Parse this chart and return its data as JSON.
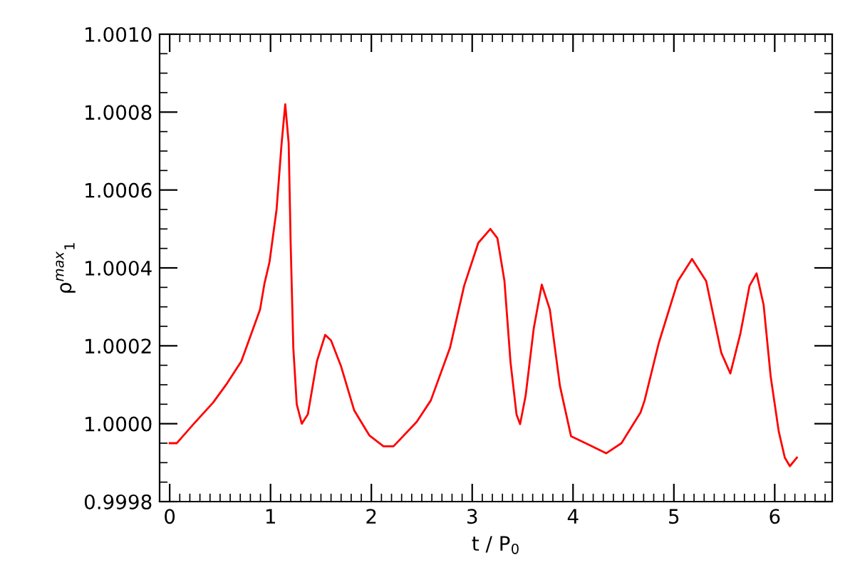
{
  "chart_data": {
    "type": "line",
    "xlabel": "t / P$_{0}$",
    "ylabel": "ρ$^{max}$$_{1}$",
    "xlim": [
      -0.1,
      6.57
    ],
    "ylim": [
      0.9998,
      1.001
    ],
    "xticks": [
      0,
      1,
      2,
      3,
      4,
      5,
      6
    ],
    "yticks": [
      {
        "value": 0.9998,
        "label": "0.9998"
      },
      {
        "value": 1.0,
        "label": "1.0000"
      },
      {
        "value": 1.0002,
        "label": "1.0002"
      },
      {
        "value": 1.0004,
        "label": "1.0004"
      },
      {
        "value": 1.0006,
        "label": "1.0006"
      },
      {
        "value": 1.0008,
        "label": "1.0008"
      },
      {
        "value": 1.001,
        "label": "1.0010"
      }
    ],
    "grid": false,
    "marker": "none",
    "line_style": "solid",
    "series": [
      {
        "color": "#ff0000",
        "x": [
          0,
          0.07,
          0.24,
          0.43,
          0.57,
          0.71,
          0.85,
          0.896,
          0.94,
          0.99,
          1.06,
          1.11,
          1.146,
          1.18,
          1.2,
          1.226,
          1.26,
          1.31,
          1.37,
          1.46,
          1.542,
          1.6,
          1.7,
          1.83,
          1.98,
          2.12,
          2.22,
          2.45,
          2.59,
          2.78,
          2.92,
          3.06,
          3.18,
          3.25,
          3.32,
          3.38,
          3.44,
          3.475,
          3.53,
          3.61,
          3.69,
          3.77,
          3.87,
          3.98,
          4.15,
          4.33,
          4.48,
          4.67,
          4.71,
          4.85,
          5.04,
          5.18,
          5.32,
          5.47,
          5.56,
          5.66,
          5.75,
          5.82,
          5.89,
          5.96,
          6.04,
          6.1,
          6.15,
          6.22
        ],
        "values": [
          0.99995,
          0.99995,
          1.0,
          1.000054,
          1.000104,
          1.00016,
          1.00026,
          1.000293,
          1.00036,
          1.000415,
          1.00055,
          1.00072,
          1.00082,
          1.00072,
          1.00046,
          1.000195,
          1.00005,
          1.0,
          1.000024,
          1.00016,
          1.000228,
          1.000214,
          1.000147,
          1.000034,
          0.99997,
          0.999942,
          0.999942,
          1.000005,
          1.00006,
          1.000195,
          1.000354,
          1.000464,
          1.0005,
          1.000476,
          1.000366,
          1.000158,
          1.000023,
          0.999999,
          1.000072,
          1.000244,
          1.000357,
          1.000293,
          1.000097,
          0.999968,
          0.999947,
          0.999924,
          0.99995,
          1.000029,
          1.00006,
          1.000207,
          1.000366,
          1.000423,
          1.000366,
          1.000182,
          1.000129,
          1.000232,
          1.000354,
          1.000386,
          1.000305,
          1.000121,
          0.99998,
          0.999913,
          0.999891,
          0.999913
        ]
      }
    ]
  }
}
